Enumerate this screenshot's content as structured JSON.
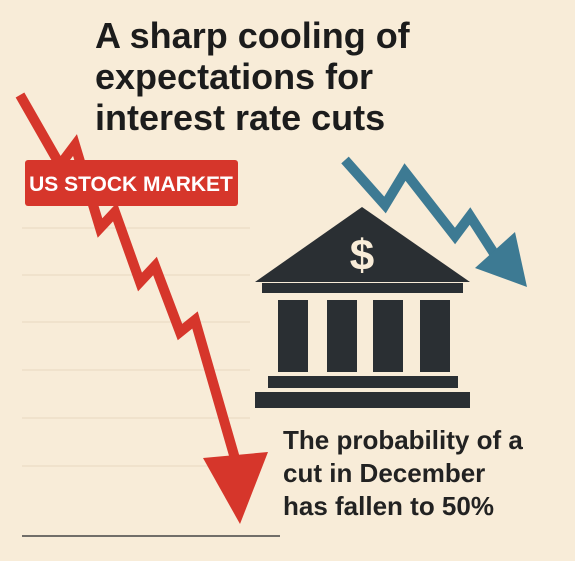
{
  "title_lines": [
    "A sharp cooling of",
    "expectations for",
    "interest rate cuts"
  ],
  "label": "US STOCK MARKET",
  "icon_symbol": "$",
  "caption_lines": [
    "The probability of a",
    "cut in December",
    "has fallen to 50%"
  ]
}
